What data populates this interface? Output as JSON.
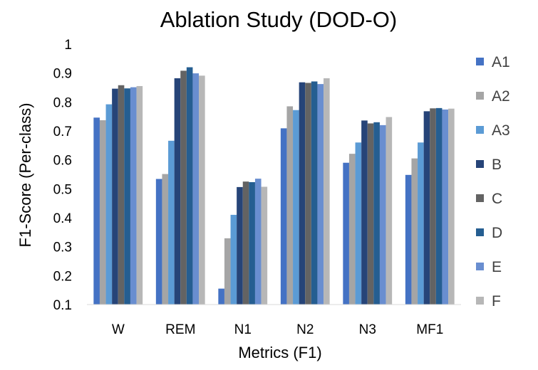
{
  "chart_data": {
    "type": "bar",
    "title": "Ablation Study (DOD-O)",
    "xlabel": "Metrics (F1)",
    "ylabel": "F1-Score  (Per-class)",
    "ylim": [
      0.1,
      1
    ],
    "yticks": [
      "0.1",
      "0.2",
      "0.3",
      "0.4",
      "0.5",
      "0.6",
      "0.7",
      "0.8",
      "0.9",
      "1"
    ],
    "grid": false,
    "legend_position": "right",
    "categories": [
      "W",
      "REM",
      "N1",
      "N2",
      "N3",
      "MF1"
    ],
    "series": [
      {
        "name": "A1",
        "color": "#4472C4",
        "values": [
          0.746,
          0.534,
          0.155,
          0.709,
          0.59,
          0.548
        ]
      },
      {
        "name": "A2",
        "color": "#A5A5A5",
        "values": [
          0.737,
          0.551,
          0.329,
          0.785,
          0.621,
          0.605
        ]
      },
      {
        "name": "A3",
        "color": "#5B9BD5",
        "values": [
          0.792,
          0.666,
          0.41,
          0.772,
          0.66,
          0.66
        ]
      },
      {
        "name": "B",
        "color": "#264478",
        "values": [
          0.846,
          0.882,
          0.506,
          0.868,
          0.736,
          0.768
        ]
      },
      {
        "name": "C",
        "color": "#636363",
        "values": [
          0.858,
          0.908,
          0.525,
          0.866,
          0.726,
          0.778
        ]
      },
      {
        "name": "D",
        "color": "#255E91",
        "values": [
          0.847,
          0.92,
          0.523,
          0.871,
          0.73,
          0.779
        ]
      },
      {
        "name": "E",
        "color": "#698ED0",
        "values": [
          0.851,
          0.899,
          0.535,
          0.862,
          0.72,
          0.774
        ]
      },
      {
        "name": "F",
        "color": "#B7B7B7",
        "values": [
          0.855,
          0.891,
          0.507,
          0.882,
          0.748,
          0.777
        ]
      }
    ]
  }
}
